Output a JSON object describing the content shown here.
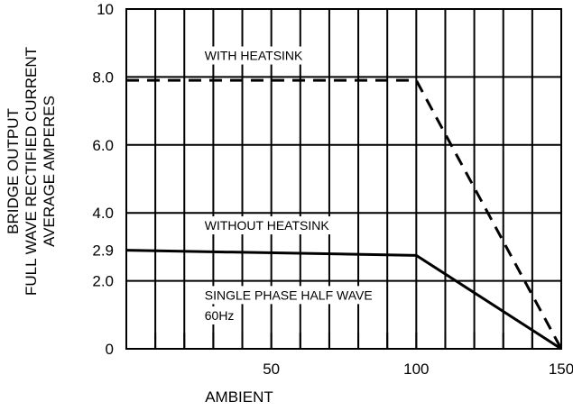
{
  "chart_data": {
    "type": "line",
    "xlabel": "AMBIENT",
    "ylabel_lines": [
      "BRIDGE OUTPUT",
      "FULL WAVE RECTIFIED CURRENT",
      "AVERAGE AMPERES"
    ],
    "xlim": [
      0,
      150
    ],
    "ylim": [
      0,
      10
    ],
    "x_ticks": [
      {
        "value": 50,
        "label": "50"
      },
      {
        "value": 100,
        "label": "100"
      },
      {
        "value": 150,
        "label": "150"
      }
    ],
    "y_ticks": [
      {
        "value": 0,
        "label": "0"
      },
      {
        "value": 2.0,
        "label": "2.0"
      },
      {
        "value": 2.9,
        "label": "2.9"
      },
      {
        "value": 4.0,
        "label": "4.0"
      },
      {
        "value": 6.0,
        "label": "6.0"
      },
      {
        "value": 8.0,
        "label": "8.0"
      },
      {
        "value": 10,
        "label": "10"
      }
    ],
    "grid": true,
    "series": [
      {
        "name": "WITH HEATSINK",
        "style": "dashed",
        "points": [
          [
            0,
            7.9
          ],
          [
            100,
            7.9
          ],
          [
            150,
            0
          ]
        ]
      },
      {
        "name": "WITHOUT HEATSINK",
        "style": "solid",
        "points": [
          [
            0,
            2.9
          ],
          [
            100,
            2.75
          ],
          [
            150,
            0
          ]
        ]
      }
    ],
    "annotations": [
      {
        "text": "WITH  HEATSINK",
        "x": 27,
        "y": 8.5
      },
      {
        "text": "WITHOUT HEATSINK",
        "x": 27,
        "y": 3.5
      },
      {
        "text": "SINGLE PHASE HALF WAVE",
        "x": 27,
        "y": 1.45
      },
      {
        "text": "60Hz",
        "x": 27,
        "y": 0.85
      }
    ],
    "colors": {
      "line": "#000000",
      "background": "#ffffff"
    }
  }
}
